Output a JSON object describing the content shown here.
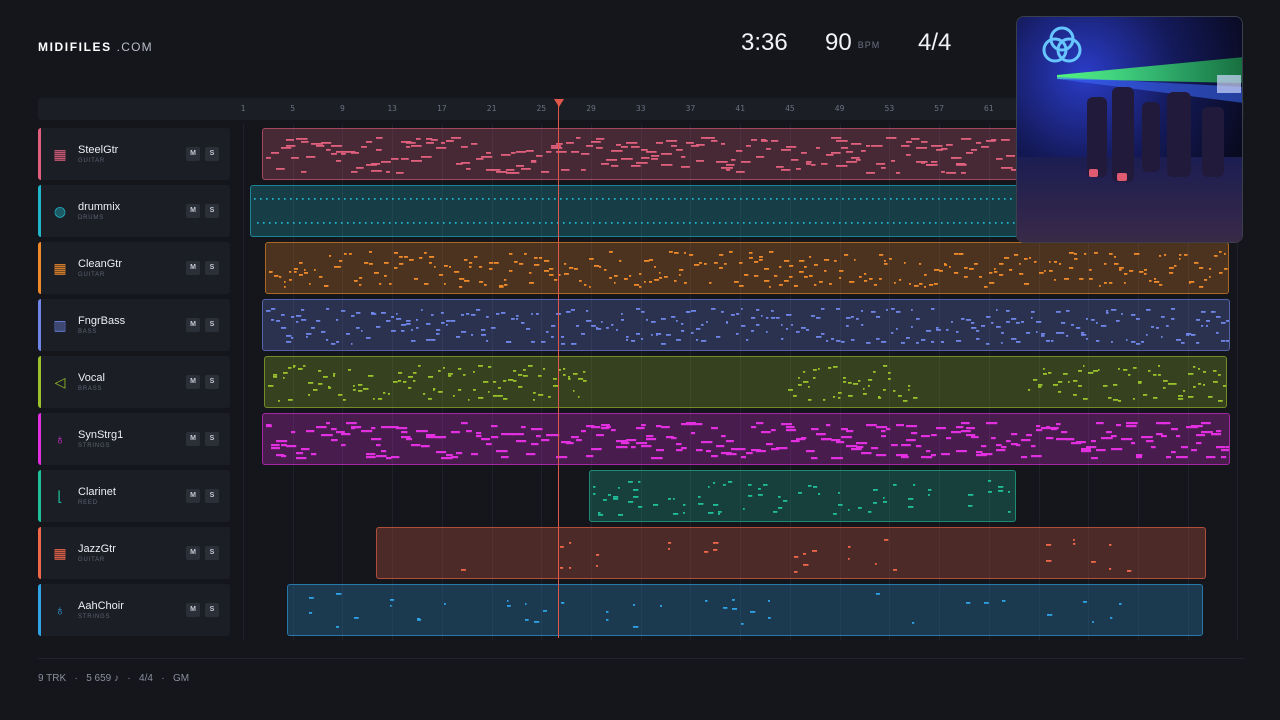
{
  "brand": {
    "name": "MIDIFILES",
    "suffix": ".COM"
  },
  "stats": {
    "time": "3:36",
    "bpm": "90",
    "bpm_unit": "BPM",
    "signature": "4/4"
  },
  "ruler": {
    "ticks": [
      "1",
      "5",
      "9",
      "13",
      "17",
      "21",
      "25",
      "29",
      "33",
      "37",
      "41",
      "45",
      "49",
      "53",
      "57",
      "61"
    ]
  },
  "playhead": {
    "bar": 25
  },
  "tracks": [
    {
      "name": "SteelGtr",
      "category": "GUITAR",
      "icon": "guitar-grid-icon",
      "color": "#e0607e",
      "mute": "M",
      "solo": "S"
    },
    {
      "name": "drummix",
      "category": "DRUMS",
      "icon": "drum-icon",
      "color": "#1fb6c9",
      "mute": "M",
      "solo": "S"
    },
    {
      "name": "CleanGtr",
      "category": "GUITAR",
      "icon": "guitar-grid-icon",
      "color": "#ef8a2a",
      "mute": "M",
      "solo": "S"
    },
    {
      "name": "FngrBass",
      "category": "BASS",
      "icon": "bass-icon",
      "color": "#6f86e8",
      "mute": "M",
      "solo": "S"
    },
    {
      "name": "Vocal",
      "category": "BRASS",
      "icon": "horn-icon",
      "color": "#9bc22a",
      "mute": "M",
      "solo": "S"
    },
    {
      "name": "SynStrg1",
      "category": "STRINGS",
      "icon": "violin-icon",
      "color": "#e22fe0",
      "mute": "M",
      "solo": "S"
    },
    {
      "name": "Clarinet",
      "category": "REED",
      "icon": "clarinet-icon",
      "color": "#1fbf9a",
      "mute": "M",
      "solo": "S"
    },
    {
      "name": "JazzGtr",
      "category": "GUITAR",
      "icon": "guitar-grid-icon",
      "color": "#f0674a",
      "mute": "M",
      "solo": "S"
    },
    {
      "name": "AahChoir",
      "category": "STRINGS",
      "icon": "violin-icon",
      "color": "#2fa3e6",
      "mute": "M",
      "solo": "S"
    }
  ],
  "footer": {
    "tracks": "9 TRK",
    "notes": "5 659 ♪",
    "signature": "4/4",
    "format": "GM",
    "separator": "·"
  }
}
